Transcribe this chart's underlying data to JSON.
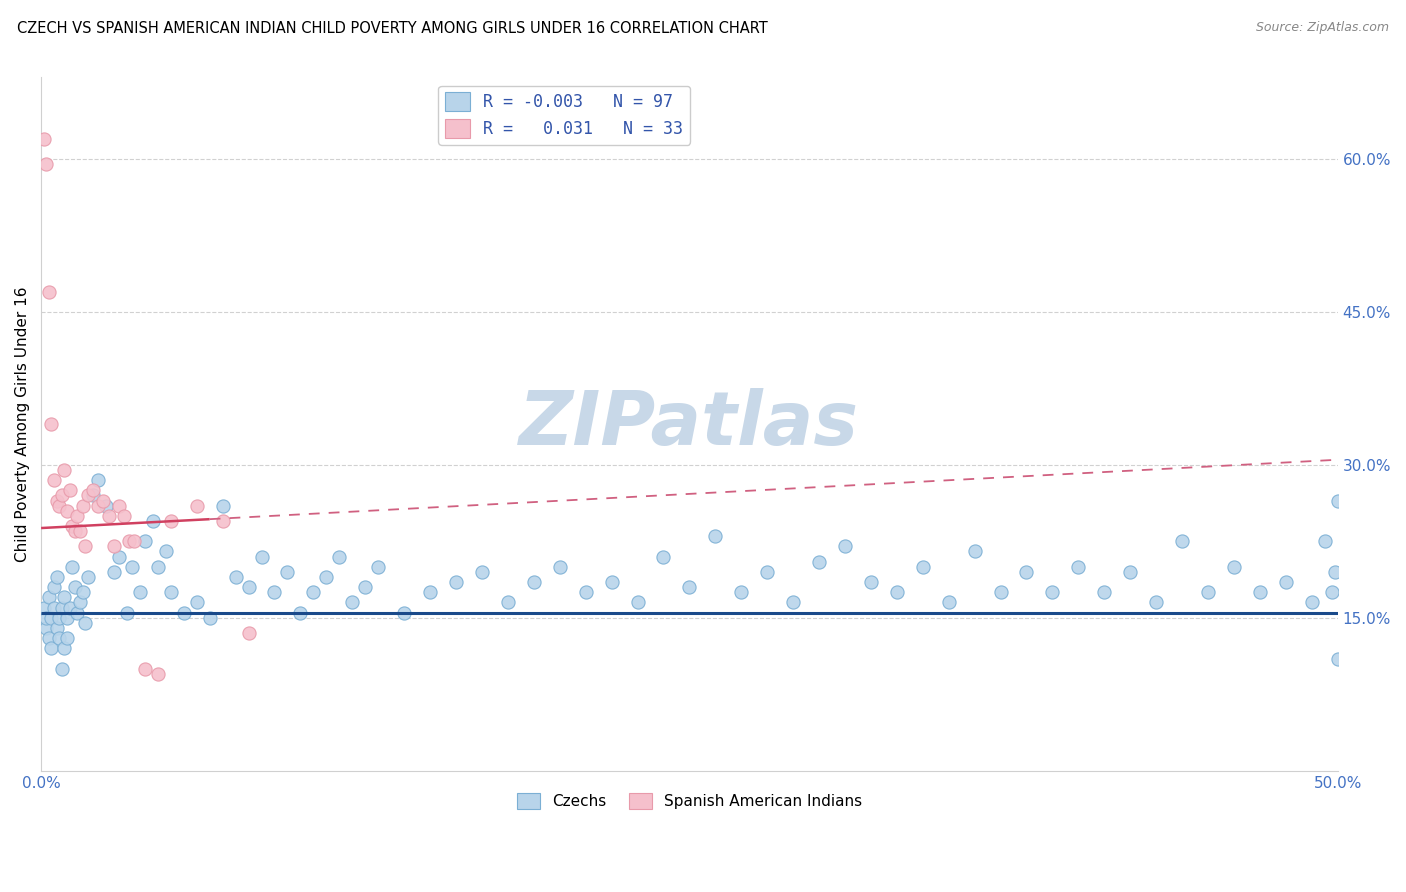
{
  "title": "CZECH VS SPANISH AMERICAN INDIAN CHILD POVERTY AMONG GIRLS UNDER 16 CORRELATION CHART",
  "source": "Source: ZipAtlas.com",
  "ylabel": "Child Poverty Among Girls Under 16",
  "x_min": 0.0,
  "x_max": 0.5,
  "y_min": 0.0,
  "y_max": 0.68,
  "right_y_ticks": [
    0.15,
    0.3,
    0.45,
    0.6
  ],
  "right_y_tick_labels": [
    "15.0%",
    "30.0%",
    "45.0%",
    "60.0%"
  ],
  "blue_face": "#b8d4ea",
  "blue_edge": "#7bafd4",
  "pink_face": "#f5c0cc",
  "pink_edge": "#e89aaa",
  "trend_blue_color": "#1a4a8a",
  "trend_pink_solid_color": "#d04060",
  "trend_pink_dash_color": "#d06080",
  "watermark_color": "#c8d8e8",
  "legend_text_color": "#3355aa",
  "legend_n_color": "#222222",
  "czechs_x": [
    0.001,
    0.002,
    0.002,
    0.003,
    0.003,
    0.004,
    0.004,
    0.005,
    0.005,
    0.006,
    0.006,
    0.007,
    0.007,
    0.008,
    0.008,
    0.009,
    0.009,
    0.01,
    0.01,
    0.011,
    0.012,
    0.013,
    0.014,
    0.015,
    0.016,
    0.017,
    0.018,
    0.02,
    0.022,
    0.025,
    0.028,
    0.03,
    0.033,
    0.035,
    0.038,
    0.04,
    0.043,
    0.045,
    0.048,
    0.05,
    0.055,
    0.06,
    0.065,
    0.07,
    0.075,
    0.08,
    0.085,
    0.09,
    0.095,
    0.1,
    0.105,
    0.11,
    0.115,
    0.12,
    0.125,
    0.13,
    0.14,
    0.15,
    0.16,
    0.17,
    0.18,
    0.19,
    0.2,
    0.21,
    0.22,
    0.23,
    0.24,
    0.25,
    0.26,
    0.27,
    0.28,
    0.29,
    0.3,
    0.31,
    0.32,
    0.33,
    0.34,
    0.35,
    0.36,
    0.37,
    0.38,
    0.39,
    0.4,
    0.41,
    0.42,
    0.43,
    0.44,
    0.45,
    0.46,
    0.47,
    0.48,
    0.49,
    0.495,
    0.498,
    0.499,
    0.5,
    0.5
  ],
  "czechs_y": [
    0.16,
    0.14,
    0.15,
    0.13,
    0.17,
    0.15,
    0.12,
    0.16,
    0.18,
    0.14,
    0.19,
    0.15,
    0.13,
    0.16,
    0.1,
    0.17,
    0.12,
    0.15,
    0.13,
    0.16,
    0.2,
    0.18,
    0.155,
    0.165,
    0.175,
    0.145,
    0.19,
    0.27,
    0.285,
    0.26,
    0.195,
    0.21,
    0.155,
    0.2,
    0.175,
    0.225,
    0.245,
    0.2,
    0.215,
    0.175,
    0.155,
    0.165,
    0.15,
    0.26,
    0.19,
    0.18,
    0.21,
    0.175,
    0.195,
    0.155,
    0.175,
    0.19,
    0.21,
    0.165,
    0.18,
    0.2,
    0.155,
    0.175,
    0.185,
    0.195,
    0.165,
    0.185,
    0.2,
    0.175,
    0.185,
    0.165,
    0.21,
    0.18,
    0.23,
    0.175,
    0.195,
    0.165,
    0.205,
    0.22,
    0.185,
    0.175,
    0.2,
    0.165,
    0.215,
    0.175,
    0.195,
    0.175,
    0.2,
    0.175,
    0.195,
    0.165,
    0.225,
    0.175,
    0.2,
    0.175,
    0.185,
    0.165,
    0.225,
    0.175,
    0.195,
    0.265,
    0.11
  ],
  "spanish_x": [
    0.001,
    0.002,
    0.003,
    0.004,
    0.005,
    0.006,
    0.007,
    0.008,
    0.009,
    0.01,
    0.011,
    0.012,
    0.013,
    0.014,
    0.015,
    0.016,
    0.017,
    0.018,
    0.02,
    0.022,
    0.024,
    0.026,
    0.028,
    0.03,
    0.032,
    0.034,
    0.036,
    0.04,
    0.045,
    0.05,
    0.06,
    0.07,
    0.08
  ],
  "spanish_y": [
    0.62,
    0.595,
    0.47,
    0.34,
    0.285,
    0.265,
    0.26,
    0.27,
    0.295,
    0.255,
    0.275,
    0.24,
    0.235,
    0.25,
    0.235,
    0.26,
    0.22,
    0.27,
    0.275,
    0.26,
    0.265,
    0.25,
    0.22,
    0.26,
    0.25,
    0.225,
    0.225,
    0.1,
    0.095,
    0.245,
    0.26,
    0.245,
    0.135
  ],
  "trend_blue_y": 0.155,
  "trend_pink_x0": 0.0,
  "trend_pink_y0": 0.238,
  "trend_pink_x1": 0.5,
  "trend_pink_y1": 0.305,
  "trend_pink_solid_end": 0.065
}
